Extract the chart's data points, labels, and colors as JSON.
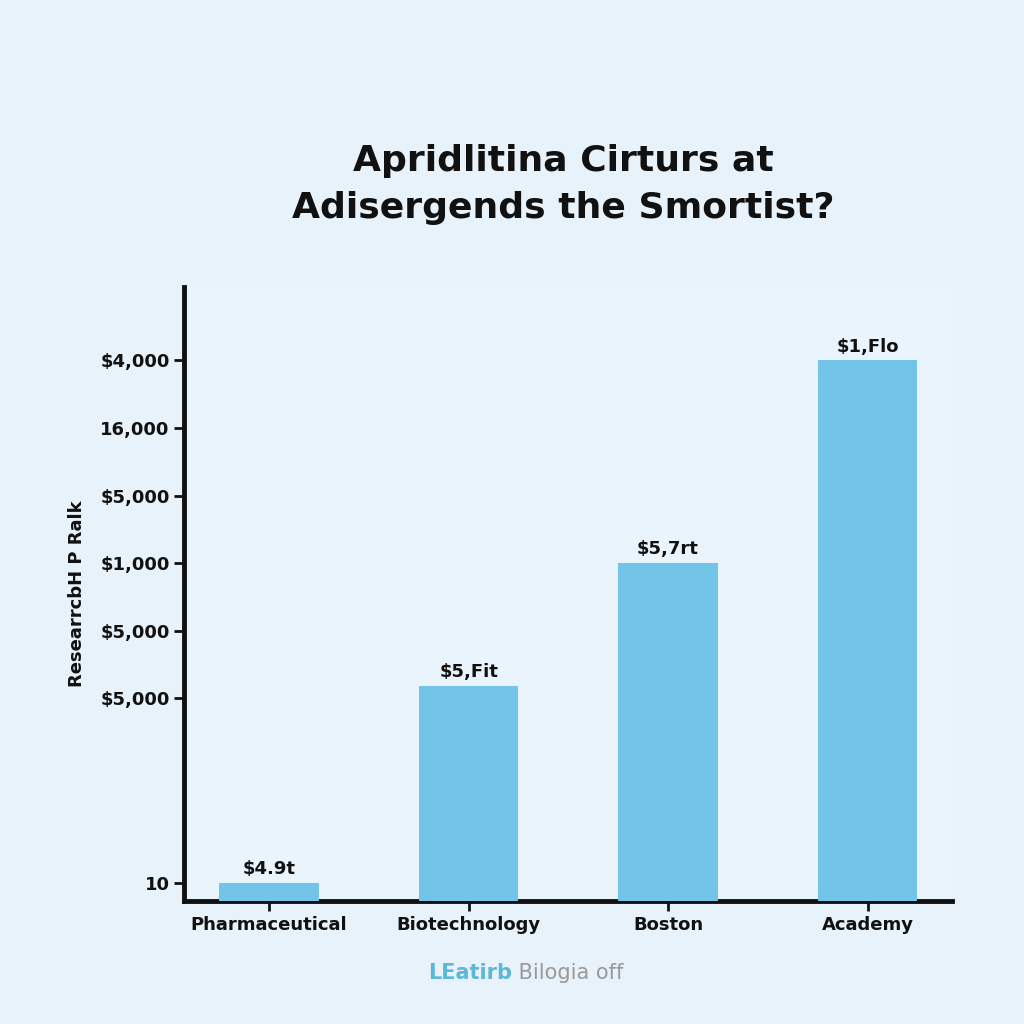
{
  "title_line1": "Apridlitina Cirturs at",
  "title_line2": "Adisergends the Smortist?",
  "ylabel": "ResearrcbH P Ralk",
  "categories": [
    "Pharmaceutical",
    "Biotechnology",
    "Boston",
    "Academy"
  ],
  "values": [
    3,
    35,
    55,
    88
  ],
  "ylim_max": 100,
  "bar_color": "#72c5e8",
  "bar_annotations": [
    "$4.9t",
    "$5,Fit",
    "$5,7rt",
    "$1,Flo"
  ],
  "ytick_labels": [
    "$4,000",
    "16,000",
    "$5,000",
    "$1,000",
    "$5,000",
    "$5,000",
    "10"
  ],
  "ytick_positions": [
    88,
    77,
    66,
    55,
    44,
    33,
    3
  ],
  "footer_text_blue": "LEatirb",
  "footer_text_gray": " Bilogia off",
  "background_color": "#e8f2fa",
  "plot_bg_color": "#eaf4fc",
  "title_fontsize": 26,
  "axis_label_fontsize": 13,
  "tick_fontsize": 13,
  "annotation_fontsize": 13,
  "footer_fontsize": 15,
  "bar_width": 0.5
}
